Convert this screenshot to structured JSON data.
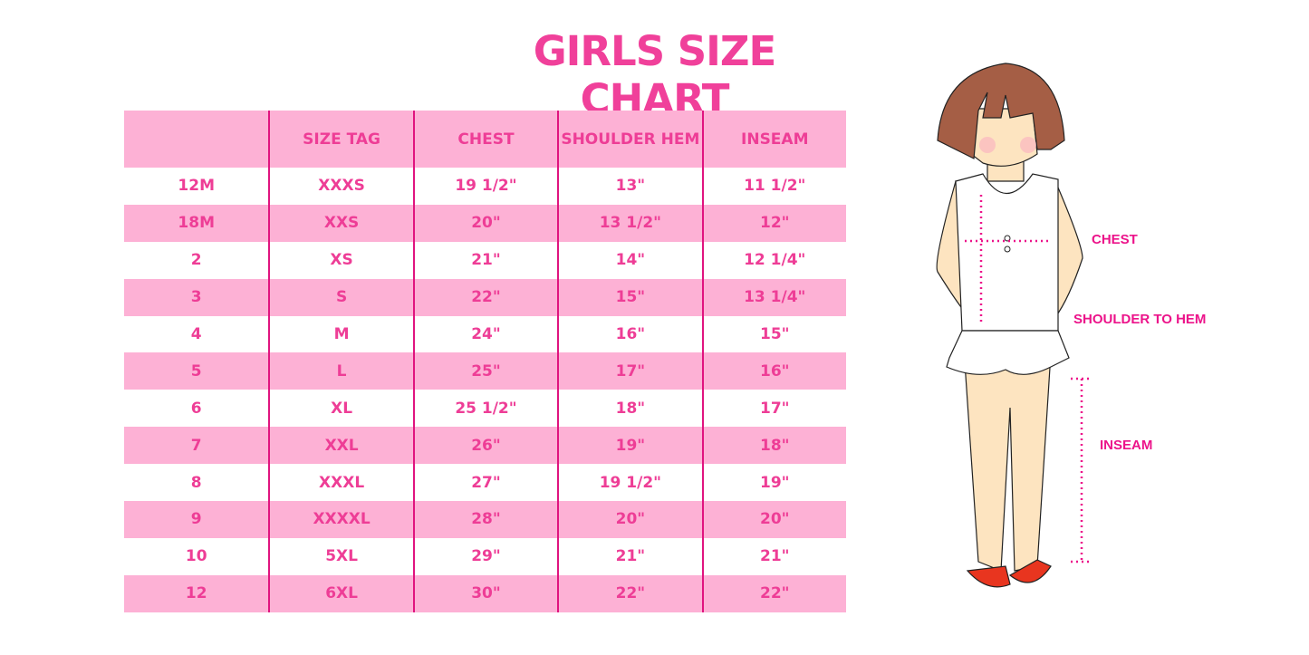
{
  "title": "GIRLS SIZE CHART",
  "table": {
    "headers": [
      "",
      "SIZE TAG",
      "CHEST",
      "SHOULDER HEM",
      "INSEAM"
    ],
    "rows": [
      [
        "12M",
        "XXXS",
        "19 1/2\"",
        "13\"",
        "11 1/2\""
      ],
      [
        "18M",
        "XXS",
        "20\"",
        "13 1/2\"",
        "12\""
      ],
      [
        "2",
        "XS",
        "21\"",
        "14\"",
        "12 1/4\""
      ],
      [
        "3",
        "S",
        "22\"",
        "15\"",
        "13 1/4\""
      ],
      [
        "4",
        "M",
        "24\"",
        "16\"",
        "15\""
      ],
      [
        "5",
        "L",
        "25\"",
        "17\"",
        "16\""
      ],
      [
        "6",
        "XL",
        "25 1/2\"",
        "18\"",
        "17\""
      ],
      [
        "7",
        "XXL",
        "26\"",
        "19\"",
        "18\""
      ],
      [
        "8",
        "XXXL",
        "27\"",
        "19 1/2\"",
        "19\""
      ],
      [
        "9",
        "XXXXL",
        "28\"",
        "20\"",
        "20\""
      ],
      [
        "10",
        "5XL",
        "29\"",
        "21\"",
        "21\""
      ],
      [
        "12",
        "6XL",
        "30\"",
        "22\"",
        "22\""
      ]
    ]
  },
  "figure": {
    "labels": {
      "chest": "CHEST",
      "shoulder_to_hem": "SHOULDER TO HEM",
      "inseam": "INSEAM"
    }
  },
  "colors": {
    "accent": "#f0409a",
    "row_pink": "#fdb1d5",
    "divider": "#e0147f"
  }
}
